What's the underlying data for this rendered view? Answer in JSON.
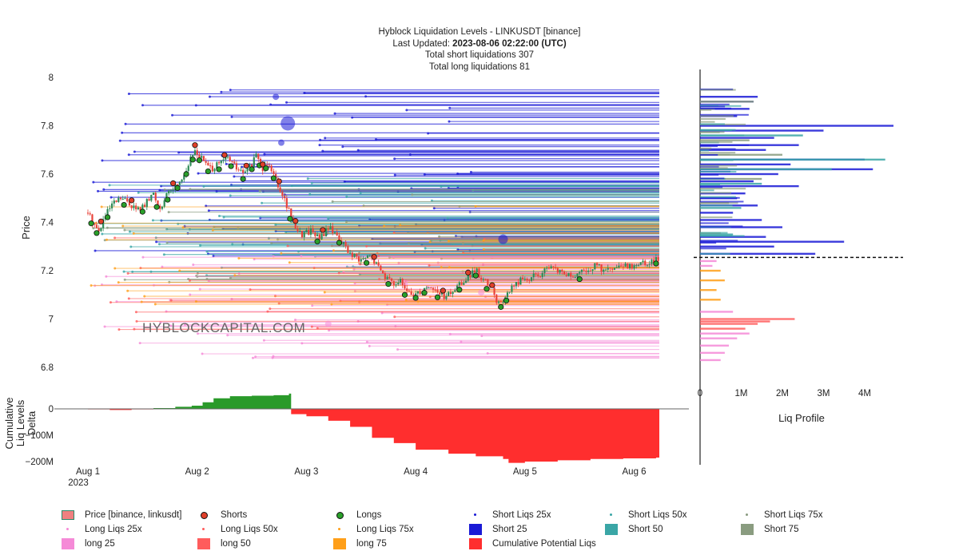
{
  "title": {
    "line1": "Hyblock Liquidation Levels - LINKUSDT [binance]",
    "updated_prefix": "Last Updated:",
    "updated_value": "2023-08-06 02:22:00 (UTC)",
    "line3": "Total short liquidations 307",
    "line4": "Total long liquidations 81"
  },
  "watermark": "HYBLOCKCAPITAL.COM",
  "colors": {
    "short25": "#1a1ad6",
    "short50": "#3aa6a6",
    "short75": "#8a9c80",
    "long25": "#f58ad7",
    "long50": "#ff5c5c",
    "long75": "#ff9f19",
    "cum_pos": "#2a9a2a",
    "cum_neg": "#ff2e2e",
    "candle_up": "#2e8b57",
    "candle_down": "#e8433a",
    "short_marker": "#e0402a",
    "long_marker": "#2aa02a"
  },
  "chart_data": [
    {
      "type": "candlestick",
      "name": "price_panel",
      "ylabel": "Price",
      "ylim": [
        6.72,
        8.05
      ],
      "yticks": [
        "8",
        "7.8",
        "7.6",
        "7.4",
        "7.2",
        "7",
        "6.8"
      ],
      "ytick_values": [
        8,
        7.8,
        7.6,
        7.4,
        7.2,
        7.0,
        6.8
      ],
      "x_days_range": [
        0,
        5.23
      ],
      "xtick_labels": [
        "Aug 1",
        "Aug 2",
        "Aug 3",
        "Aug 4",
        "Aug 5",
        "Aug 6"
      ],
      "xtick_sub": "2023",
      "price_path": [
        [
          0.0,
          7.44
        ],
        [
          0.05,
          7.4
        ],
        [
          0.1,
          7.36
        ],
        [
          0.15,
          7.42
        ],
        [
          0.22,
          7.47
        ],
        [
          0.3,
          7.5
        ],
        [
          0.38,
          7.48
        ],
        [
          0.45,
          7.45
        ],
        [
          0.52,
          7.47
        ],
        [
          0.6,
          7.52
        ],
        [
          0.65,
          7.46
        ],
        [
          0.7,
          7.49
        ],
        [
          0.75,
          7.53
        ],
        [
          0.8,
          7.55
        ],
        [
          0.88,
          7.6
        ],
        [
          0.93,
          7.65
        ],
        [
          0.98,
          7.7
        ],
        [
          1.05,
          7.66
        ],
        [
          1.12,
          7.62
        ],
        [
          1.2,
          7.64
        ],
        [
          1.28,
          7.67
        ],
        [
          1.35,
          7.63
        ],
        [
          1.42,
          7.6
        ],
        [
          1.5,
          7.64
        ],
        [
          1.55,
          7.68
        ],
        [
          1.6,
          7.62
        ],
        [
          1.65,
          7.66
        ],
        [
          1.72,
          7.58
        ],
        [
          1.78,
          7.52
        ],
        [
          1.82,
          7.47
        ],
        [
          1.88,
          7.4
        ],
        [
          1.95,
          7.35
        ],
        [
          2.05,
          7.37
        ],
        [
          2.12,
          7.33
        ],
        [
          2.2,
          7.38
        ],
        [
          2.28,
          7.35
        ],
        [
          2.35,
          7.3
        ],
        [
          2.42,
          7.26
        ],
        [
          2.5,
          7.24
        ],
        [
          2.58,
          7.26
        ],
        [
          2.65,
          7.22
        ],
        [
          2.72,
          7.18
        ],
        [
          2.78,
          7.15
        ],
        [
          2.85,
          7.16
        ],
        [
          2.9,
          7.12
        ],
        [
          2.97,
          7.1
        ],
        [
          3.05,
          7.12
        ],
        [
          3.12,
          7.14
        ],
        [
          3.2,
          7.11
        ],
        [
          3.28,
          7.09
        ],
        [
          3.35,
          7.12
        ],
        [
          3.42,
          7.15
        ],
        [
          3.5,
          7.18
        ],
        [
          3.55,
          7.2
        ],
        [
          3.62,
          7.16
        ],
        [
          3.7,
          7.12
        ],
        [
          3.76,
          7.06
        ],
        [
          3.82,
          7.09
        ],
        [
          3.88,
          7.13
        ],
        [
          3.95,
          7.16
        ],
        [
          4.05,
          7.17
        ],
        [
          4.15,
          7.19
        ],
        [
          4.25,
          7.21
        ],
        [
          4.35,
          7.19
        ],
        [
          4.45,
          7.17
        ],
        [
          4.55,
          7.2
        ],
        [
          4.65,
          7.22
        ],
        [
          4.75,
          7.2
        ],
        [
          4.85,
          7.21
        ],
        [
          4.95,
          7.22
        ],
        [
          5.05,
          7.23
        ],
        [
          5.15,
          7.24
        ],
        [
          5.2,
          7.25
        ]
      ],
      "long_marker_days": [
        0.03,
        0.08,
        0.18,
        0.33,
        0.5,
        0.63,
        0.73,
        0.82,
        0.9,
        0.96,
        1.02,
        1.1,
        1.2,
        1.31,
        1.42,
        1.5,
        1.57,
        1.63,
        1.7,
        1.85,
        2.1,
        2.3,
        2.55,
        2.75,
        2.9,
        3.0,
        3.08,
        3.2,
        3.4,
        3.55,
        3.65,
        3.78,
        3.83,
        4.5,
        5.2
      ],
      "short_marker_days": [
        0.12,
        0.4,
        0.78,
        0.98,
        1.25,
        1.45,
        1.6,
        1.75,
        1.9,
        2.15,
        2.62,
        3.25,
        3.48,
        3.7
      ],
      "level_bands": [
        {
          "series": "Short 25",
          "price_min": 7.26,
          "price_max": 7.95,
          "count": 95
        },
        {
          "series": "Short 50",
          "price_min": 7.18,
          "price_max": 7.62,
          "count": 55
        },
        {
          "series": "Short 75",
          "price_min": 7.15,
          "price_max": 7.55,
          "count": 35
        },
        {
          "series": "long 25",
          "price_min": 6.82,
          "price_max": 7.27,
          "count": 60
        },
        {
          "series": "long 50",
          "price_min": 6.95,
          "price_max": 7.36,
          "count": 35
        },
        {
          "series": "long 75",
          "price_min": 7.04,
          "price_max": 7.5,
          "count": 35
        }
      ]
    },
    {
      "type": "area",
      "name": "cumulative_delta",
      "ylabel": "Cumulative Liq Levels Delta",
      "yticks": [
        "0",
        "−100M",
        "−200M"
      ],
      "ytick_values": [
        0,
        -100,
        -200
      ],
      "ylim": [
        -215,
        60
      ],
      "unit": "M",
      "series": {
        "name": "Cumulative Potential Liqs",
        "points": [
          [
            0.0,
            -2
          ],
          [
            0.2,
            -4
          ],
          [
            0.4,
            -2
          ],
          [
            0.6,
            3
          ],
          [
            0.8,
            8
          ],
          [
            0.95,
            12
          ],
          [
            1.05,
            25
          ],
          [
            1.15,
            40
          ],
          [
            1.3,
            48
          ],
          [
            1.5,
            50
          ],
          [
            1.7,
            52
          ],
          [
            1.84,
            58
          ],
          [
            1.86,
            -20
          ],
          [
            2.0,
            -28
          ],
          [
            2.2,
            -45
          ],
          [
            2.4,
            -68
          ],
          [
            2.6,
            -110
          ],
          [
            2.8,
            -130
          ],
          [
            3.0,
            -155
          ],
          [
            3.3,
            -170
          ],
          [
            3.55,
            -180
          ],
          [
            3.8,
            -190
          ],
          [
            3.85,
            -205
          ],
          [
            4.0,
            -200
          ],
          [
            4.3,
            -195
          ],
          [
            4.6,
            -190
          ],
          [
            4.9,
            -188
          ],
          [
            5.2,
            -185
          ]
        ]
      }
    },
    {
      "type": "bar",
      "name": "liq_profile",
      "orientation": "horizontal",
      "xlabel": "Liq Profile",
      "xtick_labels": [
        "0",
        "1M",
        "2M",
        "3M",
        "4M"
      ],
      "xtick_values": [
        0,
        1,
        2,
        3,
        4
      ],
      "xlim": [
        0,
        4.7
      ],
      "current_price": 7.255,
      "bars": [
        {
          "series": "Short 25",
          "price": 7.95,
          "value": 0.8
        },
        {
          "series": "Short 25",
          "price": 7.92,
          "value": 1.4
        },
        {
          "series": "Short 25",
          "price": 7.9,
          "value": 1.3
        },
        {
          "series": "Short 25",
          "price": 7.87,
          "value": 1.2
        },
        {
          "series": "Short 25",
          "price": 7.84,
          "value": 0.9
        },
        {
          "series": "Short 25",
          "price": 7.8,
          "value": 4.7
        },
        {
          "series": "Short 25",
          "price": 7.78,
          "value": 3.0
        },
        {
          "series": "Short 25",
          "price": 7.75,
          "value": 1.8
        },
        {
          "series": "Short 25",
          "price": 7.72,
          "value": 2.4
        },
        {
          "series": "Short 25",
          "price": 7.7,
          "value": 1.6
        },
        {
          "series": "Short 25",
          "price": 7.66,
          "value": 4.0
        },
        {
          "series": "Short 25",
          "price": 7.64,
          "value": 2.2
        },
        {
          "series": "Short 25",
          "price": 7.62,
          "value": 4.2
        },
        {
          "series": "Short 25",
          "price": 7.6,
          "value": 1.9
        },
        {
          "series": "Short 25",
          "price": 7.57,
          "value": 1.3
        },
        {
          "series": "Short 25",
          "price": 7.55,
          "value": 2.4
        },
        {
          "series": "Short 25",
          "price": 7.52,
          "value": 1.1
        },
        {
          "series": "Short 25",
          "price": 7.5,
          "value": 0.9
        },
        {
          "series": "Short 25",
          "price": 7.47,
          "value": 1.4
        },
        {
          "series": "Short 25",
          "price": 7.44,
          "value": 0.8
        },
        {
          "series": "Short 25",
          "price": 7.41,
          "value": 1.5
        },
        {
          "series": "Short 25",
          "price": 7.38,
          "value": 2.0
        },
        {
          "series": "Short 25",
          "price": 7.34,
          "value": 1.6
        },
        {
          "series": "Short 25",
          "price": 7.32,
          "value": 3.5
        },
        {
          "series": "Short 25",
          "price": 7.3,
          "value": 1.8
        },
        {
          "series": "Short 25",
          "price": 7.27,
          "value": 2.8
        },
        {
          "series": "Short 50",
          "price": 7.76,
          "value": 2.5
        },
        {
          "series": "Short 50",
          "price": 7.66,
          "value": 4.5
        },
        {
          "series": "Short 50",
          "price": 7.62,
          "value": 3.2
        },
        {
          "series": "Short 50",
          "price": 7.56,
          "value": 1.5
        },
        {
          "series": "Short 50",
          "price": 7.46,
          "value": 1.0
        },
        {
          "series": "Short 50",
          "price": 7.35,
          "value": 0.8
        },
        {
          "series": "Short 75",
          "price": 7.9,
          "value": 1.3
        },
        {
          "series": "Short 75",
          "price": 7.74,
          "value": 1.2
        },
        {
          "series": "Short 75",
          "price": 7.68,
          "value": 2.0
        },
        {
          "series": "Short 75",
          "price": 7.58,
          "value": 1.5
        },
        {
          "series": "Short 75",
          "price": 7.48,
          "value": 0.7
        },
        {
          "series": "long 75",
          "price": 7.2,
          "value": 0.5
        },
        {
          "series": "long 75",
          "price": 7.16,
          "value": 0.6
        },
        {
          "series": "long 75",
          "price": 7.12,
          "value": 0.4
        },
        {
          "series": "long 75",
          "price": 7.08,
          "value": 0.5
        },
        {
          "series": "long 50",
          "price": 7.0,
          "value": 2.3
        },
        {
          "series": "long 50",
          "price": 6.99,
          "value": 1.7
        },
        {
          "series": "long 50",
          "price": 6.98,
          "value": 1.4
        },
        {
          "series": "long 50",
          "price": 6.96,
          "value": 1.1
        },
        {
          "series": "long 25",
          "price": 7.03,
          "value": 0.8
        },
        {
          "series": "long 25",
          "price": 6.94,
          "value": 1.2
        },
        {
          "series": "long 25",
          "price": 6.92,
          "value": 0.9
        },
        {
          "series": "long 25",
          "price": 6.89,
          "value": 0.7
        },
        {
          "series": "long 25",
          "price": 6.86,
          "value": 0.6
        },
        {
          "series": "long 25",
          "price": 6.83,
          "value": 0.5
        },
        {
          "series": "long 25",
          "price": 7.22,
          "value": 0.3
        },
        {
          "series": "long 25",
          "price": 7.24,
          "value": 0.4
        }
      ]
    }
  ],
  "legend": [
    {
      "label": "Price [binance, linkusdt]",
      "symbol": "candle",
      "color": "#f08080"
    },
    {
      "label": "Shorts",
      "symbol": "dot",
      "color": "#e0402a"
    },
    {
      "label": "Longs",
      "symbol": "dot",
      "color": "#2aa02a"
    },
    {
      "label": "Short Liqs 25x",
      "symbol": "small",
      "color": "#1a1ad6"
    },
    {
      "label": "Short Liqs 50x",
      "symbol": "small",
      "color": "#3aa6a6"
    },
    {
      "label": "Short Liqs 75x",
      "symbol": "small",
      "color": "#8a9c80"
    },
    {
      "label": "Long Liqs 25x",
      "symbol": "small",
      "color": "#f58ad7"
    },
    {
      "label": "Long Liqs 50x",
      "symbol": "small",
      "color": "#ff5c5c"
    },
    {
      "label": "Long Liqs 75x",
      "symbol": "small",
      "color": "#ff9f19"
    },
    {
      "label": "Short 25",
      "symbol": "box",
      "color": "#1a1ad6"
    },
    {
      "label": "Short 50",
      "symbol": "box",
      "color": "#3aa6a6"
    },
    {
      "label": "Short 75",
      "symbol": "box",
      "color": "#8a9c80"
    },
    {
      "label": "long 25",
      "symbol": "box",
      "color": "#f58ad7"
    },
    {
      "label": "long 50",
      "symbol": "box",
      "color": "#ff5c5c"
    },
    {
      "label": "long 75",
      "symbol": "box",
      "color": "#ff9f19"
    },
    {
      "label": "Cumulative Potential Liqs",
      "symbol": "box",
      "color": "#ff2e2e"
    }
  ]
}
